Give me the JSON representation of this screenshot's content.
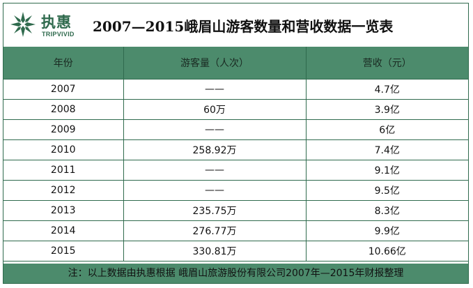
{
  "logo": {
    "cn": "执惠",
    "en": "TRIPVIVID",
    "icon": "star-logo-icon",
    "color": "#2f6a4d"
  },
  "title": "2007—2015峨眉山游客数量和营收数据一览表",
  "colors": {
    "header_bg": "#4c8b6c",
    "border": "#2f6a4d"
  },
  "chart_data": {
    "type": "table",
    "columns": [
      "年份",
      "游客量（人次）",
      "营收（元）"
    ],
    "rows": [
      [
        "2007",
        "——",
        "4.7亿"
      ],
      [
        "2008",
        "60万",
        "3.9亿"
      ],
      [
        "2009",
        "——",
        "6亿"
      ],
      [
        "2010",
        "258.92万",
        "7.4亿"
      ],
      [
        "2011",
        "——",
        "9.1亿"
      ],
      [
        "2012",
        "——",
        "9.5亿"
      ],
      [
        "2013",
        "235.75万",
        "8.3亿"
      ],
      [
        "2014",
        "276.77万",
        "9.9亿"
      ],
      [
        "2015",
        "330.81万",
        "10.66亿"
      ]
    ]
  },
  "footer": "注：以上数据由执惠根据 峨眉山旅游股份有限公司2007年—2015年财报整理"
}
